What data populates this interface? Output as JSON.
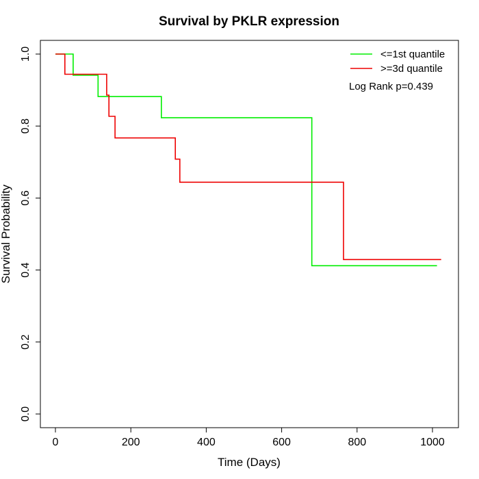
{
  "chart_data": {
    "type": "line",
    "title": "Survival by PKLR expression",
    "xlabel": "Time (Days)",
    "ylabel": "Survival Probability",
    "xlim": [
      0,
      1000
    ],
    "ylim": [
      0,
      1
    ],
    "x_ticks": [
      "0",
      "200",
      "400",
      "600",
      "800",
      "1000"
    ],
    "y_ticks": [
      "0.0",
      "0.2",
      "0.4",
      "0.6",
      "0.8",
      "1.0"
    ],
    "grid": false,
    "legend_position": "top-right",
    "annotation": "Log Rank p=0.439",
    "series": [
      {
        "name": "<=1st quantile",
        "color": "#00ee00",
        "x": [
          0,
          47,
          47,
          113,
          113,
          281,
          281,
          680,
          680,
          1012
        ],
        "y": [
          1.0,
          1.0,
          0.941,
          0.941,
          0.882,
          0.882,
          0.823,
          0.823,
          0.412,
          0.412
        ]
      },
      {
        "name": ">=3d quantile",
        "color": "#ee0000",
        "x": [
          0,
          25,
          25,
          136,
          136,
          142,
          142,
          158,
          158,
          318,
          318,
          330,
          330,
          764,
          764,
          1023
        ],
        "y": [
          1.0,
          1.0,
          0.944,
          0.944,
          0.886,
          0.886,
          0.827,
          0.827,
          0.767,
          0.767,
          0.708,
          0.708,
          0.644,
          0.644,
          0.429,
          0.429
        ]
      }
    ]
  }
}
